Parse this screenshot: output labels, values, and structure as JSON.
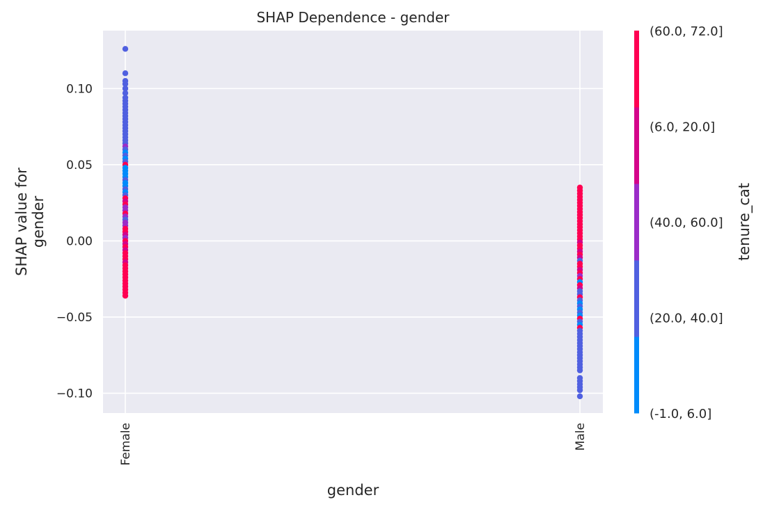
{
  "chart_data": {
    "type": "scatter",
    "title": "SHAP Dependence - gender",
    "xlabel": "gender",
    "ylabel": "SHAP value for\ngender",
    "categories": [
      "Female",
      "Male"
    ],
    "ylim": [
      -0.113,
      0.138
    ],
    "yticks": [
      0.1,
      0.05,
      0.0,
      -0.05,
      -0.1
    ],
    "ytick_labels": [
      "0.10",
      "0.05",
      "0.00",
      "−0.05",
      "−0.10"
    ],
    "grid": true,
    "colorbar": {
      "label": "tenure_cat",
      "categories": [
        "(-1.0, 6.0]",
        "(20.0, 40.0]",
        "(40.0, 60.0]",
        "(6.0, 20.0]",
        "(60.0, 72.0]"
      ],
      "colors": [
        "#008bfb",
        "#5060e0",
        "#9b2cc8",
        "#d4048a",
        "#ff0052"
      ]
    },
    "series": [
      {
        "x": "Female",
        "points": [
          {
            "y": 0.126,
            "c": 1
          },
          {
            "y": 0.11,
            "c": 1
          },
          {
            "y": 0.105,
            "c": 1
          },
          {
            "y": 0.103,
            "c": 1
          },
          {
            "y": 0.1,
            "c": 1
          },
          {
            "y": 0.097,
            "c": 1
          },
          {
            "y": 0.094,
            "c": 1
          },
          {
            "y": 0.092,
            "c": 1
          },
          {
            "y": 0.09,
            "c": 1
          },
          {
            "y": 0.088,
            "c": 1
          },
          {
            "y": 0.086,
            "c": 1
          },
          {
            "y": 0.084,
            "c": 1
          },
          {
            "y": 0.082,
            "c": 1
          },
          {
            "y": 0.08,
            "c": 1
          },
          {
            "y": 0.078,
            "c": 1
          },
          {
            "y": 0.076,
            "c": 1
          },
          {
            "y": 0.074,
            "c": 1
          },
          {
            "y": 0.072,
            "c": 1
          },
          {
            "y": 0.07,
            "c": 1
          },
          {
            "y": 0.068,
            "c": 1
          },
          {
            "y": 0.066,
            "c": 1
          },
          {
            "y": 0.064,
            "c": 1
          },
          {
            "y": 0.062,
            "c": 2
          },
          {
            "y": 0.06,
            "c": 1
          },
          {
            "y": 0.058,
            "c": 0
          },
          {
            "y": 0.056,
            "c": 1
          },
          {
            "y": 0.054,
            "c": 0
          },
          {
            "y": 0.052,
            "c": 1
          },
          {
            "y": 0.05,
            "c": 4
          },
          {
            "y": 0.048,
            "c": 0
          },
          {
            "y": 0.046,
            "c": 0
          },
          {
            "y": 0.044,
            "c": 0
          },
          {
            "y": 0.042,
            "c": 0
          },
          {
            "y": 0.04,
            "c": 1
          },
          {
            "y": 0.038,
            "c": 0
          },
          {
            "y": 0.036,
            "c": 0
          },
          {
            "y": 0.034,
            "c": 1
          },
          {
            "y": 0.032,
            "c": 0
          },
          {
            "y": 0.03,
            "c": 1
          },
          {
            "y": 0.028,
            "c": 4
          },
          {
            "y": 0.026,
            "c": 3
          },
          {
            "y": 0.024,
            "c": 4
          },
          {
            "y": 0.022,
            "c": 2
          },
          {
            "y": 0.02,
            "c": 2
          },
          {
            "y": 0.018,
            "c": 4
          },
          {
            "y": 0.016,
            "c": 2
          },
          {
            "y": 0.014,
            "c": 1
          },
          {
            "y": 0.012,
            "c": 2
          },
          {
            "y": 0.01,
            "c": 2
          },
          {
            "y": 0.008,
            "c": 4
          },
          {
            "y": 0.006,
            "c": 4
          },
          {
            "y": 0.004,
            "c": 3
          },
          {
            "y": 0.002,
            "c": 2
          },
          {
            "y": 0.0,
            "c": 4
          },
          {
            "y": -0.002,
            "c": 3
          },
          {
            "y": -0.004,
            "c": 4
          },
          {
            "y": -0.006,
            "c": 3
          },
          {
            "y": -0.008,
            "c": 4
          },
          {
            "y": -0.01,
            "c": 4
          },
          {
            "y": -0.012,
            "c": 4
          },
          {
            "y": -0.014,
            "c": 3
          },
          {
            "y": -0.016,
            "c": 4
          },
          {
            "y": -0.018,
            "c": 4
          },
          {
            "y": -0.02,
            "c": 4
          },
          {
            "y": -0.022,
            "c": 4
          },
          {
            "y": -0.024,
            "c": 4
          },
          {
            "y": -0.026,
            "c": 4
          },
          {
            "y": -0.028,
            "c": 4
          },
          {
            "y": -0.03,
            "c": 4
          },
          {
            "y": -0.032,
            "c": 4
          },
          {
            "y": -0.034,
            "c": 4
          },
          {
            "y": -0.036,
            "c": 4
          }
        ]
      },
      {
        "x": "Male",
        "points": [
          {
            "y": 0.035,
            "c": 4
          },
          {
            "y": 0.033,
            "c": 4
          },
          {
            "y": 0.031,
            "c": 4
          },
          {
            "y": 0.029,
            "c": 4
          },
          {
            "y": 0.027,
            "c": 4
          },
          {
            "y": 0.025,
            "c": 4
          },
          {
            "y": 0.023,
            "c": 4
          },
          {
            "y": 0.021,
            "c": 4
          },
          {
            "y": 0.019,
            "c": 4
          },
          {
            "y": 0.017,
            "c": 4
          },
          {
            "y": 0.015,
            "c": 4
          },
          {
            "y": 0.013,
            "c": 4
          },
          {
            "y": 0.011,
            "c": 4
          },
          {
            "y": 0.009,
            "c": 4
          },
          {
            "y": 0.007,
            "c": 4
          },
          {
            "y": 0.005,
            "c": 4
          },
          {
            "y": 0.003,
            "c": 4
          },
          {
            "y": 0.001,
            "c": 4
          },
          {
            "y": -0.001,
            "c": 3
          },
          {
            "y": -0.003,
            "c": 4
          },
          {
            "y": -0.005,
            "c": 4
          },
          {
            "y": -0.007,
            "c": 3
          },
          {
            "y": -0.009,
            "c": 4
          },
          {
            "y": -0.011,
            "c": 3
          },
          {
            "y": -0.013,
            "c": 1
          },
          {
            "y": -0.015,
            "c": 4
          },
          {
            "y": -0.017,
            "c": 4
          },
          {
            "y": -0.019,
            "c": 3
          },
          {
            "y": -0.021,
            "c": 4
          },
          {
            "y": -0.023,
            "c": 2
          },
          {
            "y": -0.025,
            "c": 4
          },
          {
            "y": -0.027,
            "c": 0
          },
          {
            "y": -0.029,
            "c": 4
          },
          {
            "y": -0.031,
            "c": 3
          },
          {
            "y": -0.033,
            "c": 1
          },
          {
            "y": -0.035,
            "c": 1
          },
          {
            "y": -0.037,
            "c": 4
          },
          {
            "y": -0.039,
            "c": 1
          },
          {
            "y": -0.041,
            "c": 0
          },
          {
            "y": -0.043,
            "c": 1
          },
          {
            "y": -0.045,
            "c": 0
          },
          {
            "y": -0.047,
            "c": 1
          },
          {
            "y": -0.049,
            "c": 0
          },
          {
            "y": -0.051,
            "c": 4
          },
          {
            "y": -0.053,
            "c": 1
          },
          {
            "y": -0.055,
            "c": 0
          },
          {
            "y": -0.057,
            "c": 4
          },
          {
            "y": -0.059,
            "c": 1
          },
          {
            "y": -0.061,
            "c": 1
          },
          {
            "y": -0.063,
            "c": 1
          },
          {
            "y": -0.065,
            "c": 1
          },
          {
            "y": -0.067,
            "c": 1
          },
          {
            "y": -0.069,
            "c": 1
          },
          {
            "y": -0.071,
            "c": 1
          },
          {
            "y": -0.073,
            "c": 1
          },
          {
            "y": -0.075,
            "c": 1
          },
          {
            "y": -0.077,
            "c": 1
          },
          {
            "y": -0.079,
            "c": 1
          },
          {
            "y": -0.081,
            "c": 1
          },
          {
            "y": -0.083,
            "c": 1
          },
          {
            "y": -0.085,
            "c": 1
          },
          {
            "y": -0.09,
            "c": 1
          },
          {
            "y": -0.092,
            "c": 1
          },
          {
            "y": -0.094,
            "c": 1
          },
          {
            "y": -0.096,
            "c": 1
          },
          {
            "y": -0.098,
            "c": 1
          },
          {
            "y": -0.102,
            "c": 1
          }
        ]
      }
    ]
  }
}
